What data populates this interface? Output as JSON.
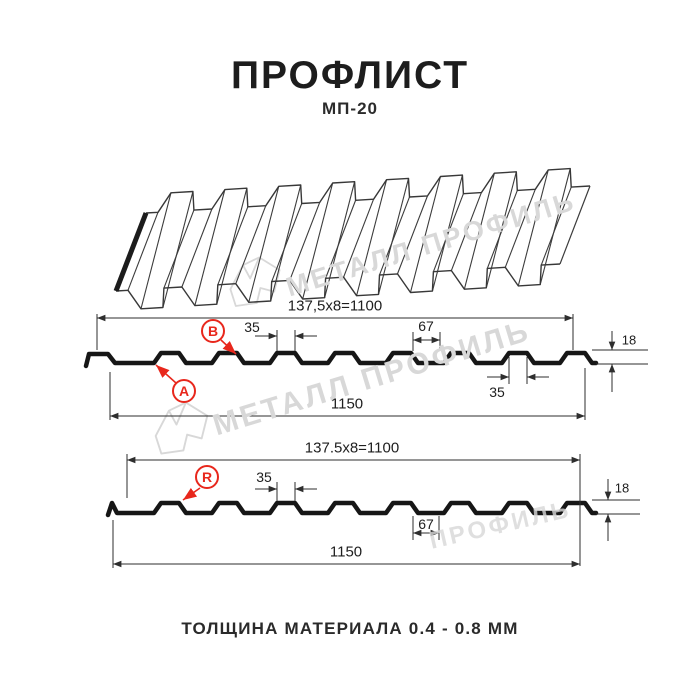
{
  "header": {
    "title": "ПРОФЛИСТ",
    "subtitle": "МП-20"
  },
  "watermark": {
    "brand": "МЕТАЛЛ ПРОФИЛЬ",
    "fragment": "ПРОФИЛЬ"
  },
  "profile_top": {
    "dim_width_formula": "137,5x8=1100",
    "dim_rib_top_width": "35",
    "dim_rib_spacing": "67",
    "dim_height": "18",
    "dim_rib_bottom_width": "35",
    "dim_total_width": "1150",
    "label_a": "A",
    "label_b": "B"
  },
  "profile_bottom": {
    "dim_width_formula": "137.5x8=1100",
    "dim_rib_top_width": "35",
    "dim_rib_spacing": "67",
    "dim_height": "18",
    "dim_total_width": "1150",
    "label_r": "R"
  },
  "footer": {
    "thickness_note": "ТОЛЩИНА МАТЕРИАЛА 0.4 - 0.8 ММ"
  },
  "colors": {
    "accent_red": "#e8271c",
    "line": "#2e2e2e",
    "profile_line": "#161616",
    "watermark_gray": "#d8d8d8"
  }
}
